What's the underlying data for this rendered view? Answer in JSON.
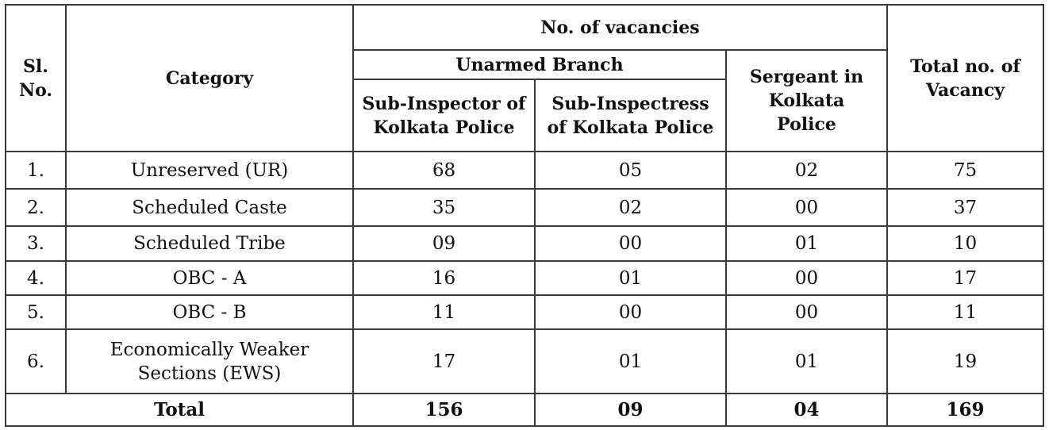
{
  "table": {
    "headers": {
      "sl_no": "Sl. No.",
      "category": "Category",
      "vacancies_group": "No. of vacancies",
      "unarmed_branch": "Unarmed Branch",
      "sub_inspector": "Sub-Inspector of Kolkata Police",
      "sub_inspectress": "Sub-Inspectress of Kolkata Police",
      "sergeant": "Sergeant in Kolkata Police",
      "total_vacancy": "Total no. of Vacancy"
    },
    "rows": [
      {
        "sl": "1.",
        "category": "Unreserved (UR)",
        "si": "68",
        "sis": "05",
        "sgt": "02",
        "total": "75"
      },
      {
        "sl": "2.",
        "category": "Scheduled Caste",
        "si": "35",
        "sis": "02",
        "sgt": "00",
        "total": "37"
      },
      {
        "sl": "3.",
        "category": "Scheduled Tribe",
        "si": "09",
        "sis": "00",
        "sgt": "01",
        "total": "10"
      },
      {
        "sl": "4.",
        "category": "OBC - A",
        "si": "16",
        "sis": "01",
        "sgt": "00",
        "total": "17"
      },
      {
        "sl": "5.",
        "category": "OBC - B",
        "si": "11",
        "sis": "00",
        "sgt": "00",
        "total": "11"
      },
      {
        "sl": "6.",
        "category": "Economically Weaker Sections (EWS)",
        "si": "17",
        "sis": "01",
        "sgt": "01",
        "total": "19"
      }
    ],
    "total_row": {
      "label": "Total",
      "si": "156",
      "sis": "09",
      "sgt": "04",
      "total": "169"
    }
  }
}
